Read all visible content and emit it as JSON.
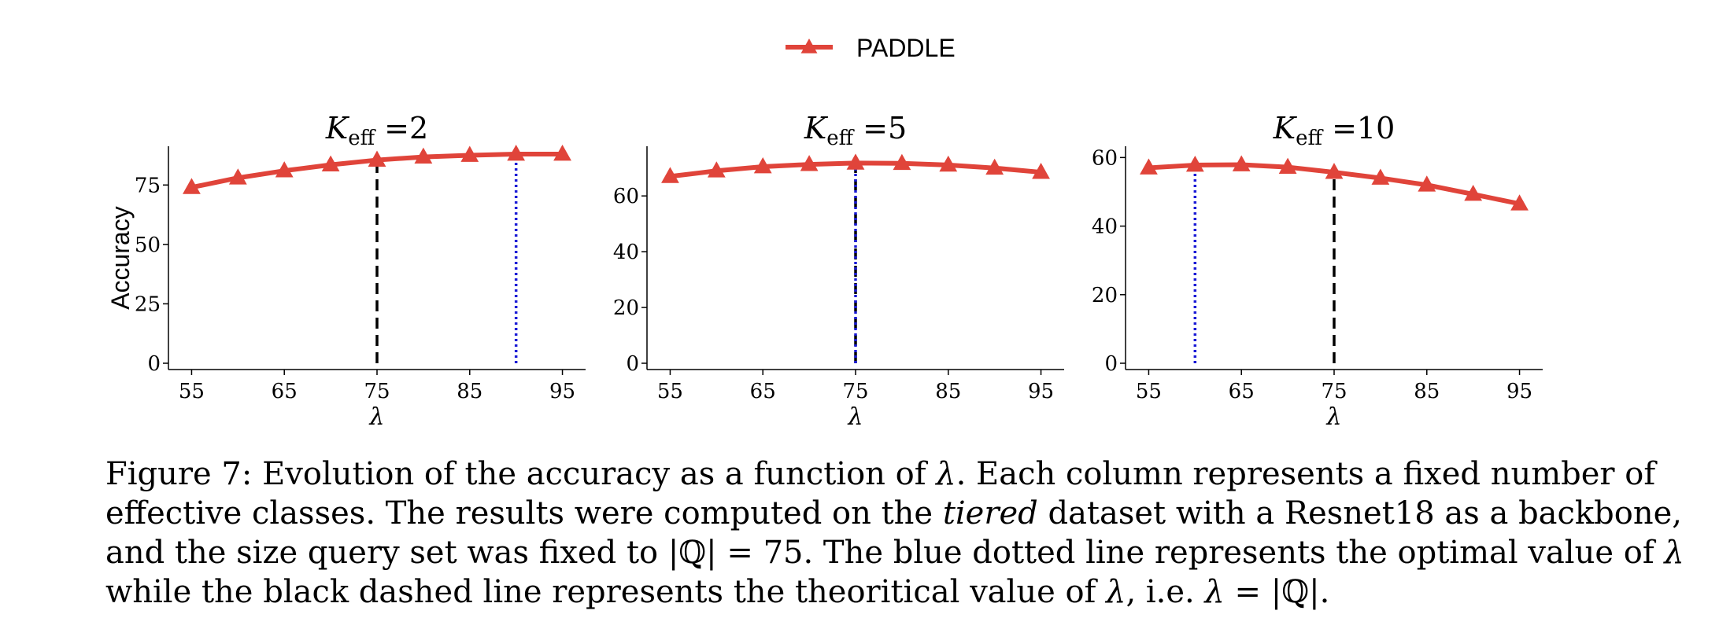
{
  "legend": {
    "label": "PADDLE",
    "color": "#e0443a",
    "position": "top-center"
  },
  "colors": {
    "series": "#e0443a",
    "optimal_line": "#1a1ad6",
    "theoretical_line": "#000000"
  },
  "chart_data": [
    {
      "type": "line",
      "title_main": "K",
      "title_sub": "eff",
      "title_rest": " =2",
      "xlabel": "λ",
      "ylabel": "Accuracy",
      "x": [
        55,
        60,
        65,
        70,
        75,
        80,
        85,
        90,
        95
      ],
      "xticks": [
        55,
        65,
        75,
        85,
        95
      ],
      "yticks": [
        0,
        25,
        50,
        75
      ],
      "ylim": [
        0,
        88
      ],
      "xlim": [
        52.5,
        97.5
      ],
      "grid": false,
      "series": [
        {
          "name": "PADDLE",
          "values": [
            74,
            78,
            81,
            83.5,
            85.5,
            86.8,
            87.5,
            88,
            88
          ]
        }
      ],
      "vlines": [
        {
          "x": 75,
          "style": "dashed",
          "color": "#000000"
        },
        {
          "x": 90,
          "style": "dotted",
          "color": "#1a1ad6"
        }
      ]
    },
    {
      "type": "line",
      "title_main": "K",
      "title_sub": "eff",
      "title_rest": " =5",
      "xlabel": "λ",
      "ylabel": "",
      "x": [
        55,
        60,
        65,
        70,
        75,
        80,
        85,
        90,
        95
      ],
      "xticks": [
        55,
        65,
        75,
        85,
        95
      ],
      "yticks": [
        0,
        20,
        40,
        60
      ],
      "ylim": [
        0,
        75
      ],
      "xlim": [
        52.5,
        97.5
      ],
      "grid": false,
      "series": [
        {
          "name": "PADDLE",
          "values": [
            67,
            69,
            70.5,
            71.3,
            71.8,
            71.7,
            71.1,
            70,
            68.5
          ]
        }
      ],
      "vlines": [
        {
          "x": 75,
          "style": "dashed",
          "color": "#000000"
        },
        {
          "x": 75,
          "style": "dotted",
          "color": "#1a1ad6"
        }
      ]
    },
    {
      "type": "line",
      "title_main": "K",
      "title_sub": "eff",
      "title_rest": " =10",
      "xlabel": "λ",
      "ylabel": "",
      "x": [
        55,
        60,
        65,
        70,
        75,
        80,
        85,
        90,
        95
      ],
      "xticks": [
        55,
        65,
        75,
        85,
        95
      ],
      "yticks": [
        0,
        20,
        40,
        60
      ],
      "ylim": [
        0,
        61
      ],
      "xlim": [
        52.5,
        97.5
      ],
      "grid": false,
      "series": [
        {
          "name": "PADDLE",
          "values": [
            57,
            57.8,
            57.9,
            57.2,
            55.7,
            54,
            52,
            49.3,
            46.5
          ]
        }
      ],
      "vlines": [
        {
          "x": 75,
          "style": "dashed",
          "color": "#000000"
        },
        {
          "x": 60,
          "style": "dotted",
          "color": "#1a1ad6"
        }
      ]
    }
  ],
  "caption": {
    "line1_a": "Figure 7: Evolution of the accuracy as a function of ",
    "line1_lambda": "λ",
    "line1_b": ". Each column represents a fixed number of",
    "line2_a": "effective classes. The results were computed on the ",
    "line2_em": "tiered",
    "line2_b": " dataset with a Resnet18 as a backbone,",
    "line3_a": "and the size query set was fixed to |ℚ| = 75. The blue dotted line represents the optimal value of ",
    "line3_lambda": "λ",
    "line4_a": "while the black dashed line represents the theoritical value of ",
    "line4_lambda": "λ",
    "line4_b": ", i.e. ",
    "line4_expr": "λ",
    "line4_c": " = |ℚ|."
  }
}
